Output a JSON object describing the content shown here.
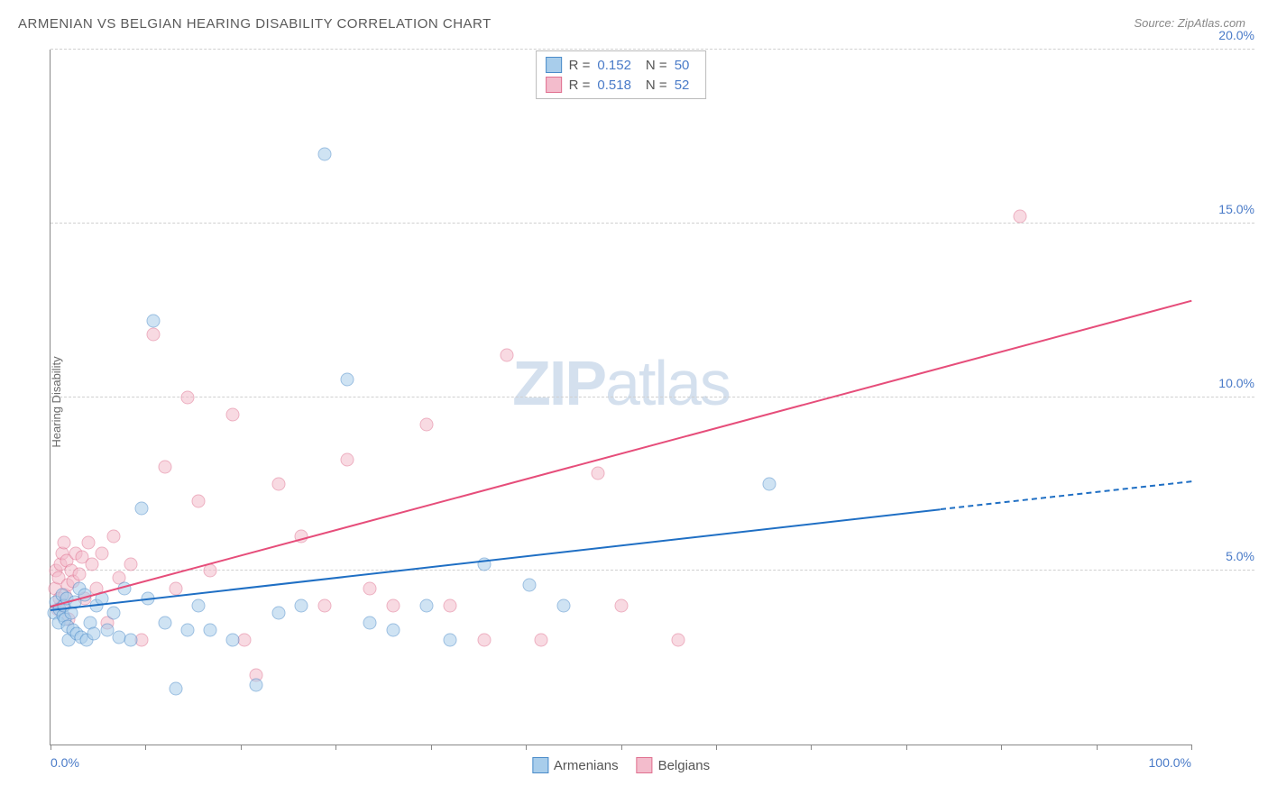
{
  "title": "ARMENIAN VS BELGIAN HEARING DISABILITY CORRELATION CHART",
  "source": "Source: ZipAtlas.com",
  "y_axis_label": "Hearing Disability",
  "watermark": {
    "zip": "ZIP",
    "atlas": "atlas"
  },
  "chart": {
    "type": "scatter",
    "xlim": [
      0,
      100
    ],
    "ylim": [
      0,
      20
    ],
    "x_ticks": [
      0,
      8.33,
      16.67,
      25,
      33.33,
      41.67,
      50,
      58.33,
      66.67,
      75,
      83.33,
      91.67,
      100
    ],
    "x_tick_labels": {
      "0": "0.0%",
      "100": "100.0%"
    },
    "y_ticks": [
      5,
      10,
      15,
      20
    ],
    "y_tick_labels": {
      "5": "5.0%",
      "10": "10.0%",
      "15": "15.0%",
      "20": "20.0%"
    },
    "grid_color": "#d0d0d0",
    "background_color": "#ffffff",
    "axis_color": "#888888",
    "tick_label_color": "#4a7bc8",
    "marker_size": 15,
    "marker_opacity": 0.55
  },
  "series": {
    "armenians": {
      "label": "Armenians",
      "fill_color": "#a8cdeb",
      "stroke_color": "#4a8bc9",
      "trend_color": "#1f6fc4",
      "r_value": "0.152",
      "n_value": "50",
      "trend": {
        "x1": 0,
        "y1": 3.9,
        "x2_solid": 78,
        "y2_solid": 6.8,
        "x2_dash": 100,
        "y2_dash": 7.6
      },
      "points": [
        [
          0.3,
          3.8
        ],
        [
          0.5,
          4.1
        ],
        [
          0.7,
          3.5
        ],
        [
          0.8,
          3.9
        ],
        [
          1.0,
          4.3
        ],
        [
          1.1,
          3.7
        ],
        [
          1.2,
          4.0
        ],
        [
          1.3,
          3.6
        ],
        [
          1.4,
          4.2
        ],
        [
          1.5,
          3.4
        ],
        [
          1.6,
          3.0
        ],
        [
          1.8,
          3.8
        ],
        [
          2.0,
          3.3
        ],
        [
          2.1,
          4.1
        ],
        [
          2.3,
          3.2
        ],
        [
          2.5,
          4.5
        ],
        [
          2.7,
          3.1
        ],
        [
          3.0,
          4.3
        ],
        [
          3.2,
          3.0
        ],
        [
          3.5,
          3.5
        ],
        [
          3.8,
          3.2
        ],
        [
          4.0,
          4.0
        ],
        [
          4.5,
          4.2
        ],
        [
          5.0,
          3.3
        ],
        [
          5.5,
          3.8
        ],
        [
          6.0,
          3.1
        ],
        [
          6.5,
          4.5
        ],
        [
          7.0,
          3.0
        ],
        [
          8.0,
          6.8
        ],
        [
          8.5,
          4.2
        ],
        [
          9.0,
          12.2
        ],
        [
          10.0,
          3.5
        ],
        [
          11.0,
          1.6
        ],
        [
          12.0,
          3.3
        ],
        [
          13.0,
          4.0
        ],
        [
          14.0,
          3.3
        ],
        [
          16.0,
          3.0
        ],
        [
          18.0,
          1.7
        ],
        [
          20.0,
          3.8
        ],
        [
          22.0,
          4.0
        ],
        [
          24.0,
          17.0
        ],
        [
          26.0,
          10.5
        ],
        [
          28.0,
          3.5
        ],
        [
          30.0,
          3.3
        ],
        [
          33.0,
          4.0
        ],
        [
          35.0,
          3.0
        ],
        [
          38.0,
          5.2
        ],
        [
          42.0,
          4.6
        ],
        [
          45.0,
          4.0
        ],
        [
          63.0,
          7.5
        ]
      ]
    },
    "belgians": {
      "label": "Belgians",
      "fill_color": "#f3bccc",
      "stroke_color": "#e0708f",
      "trend_color": "#e64d7a",
      "r_value": "0.518",
      "n_value": "52",
      "trend": {
        "x1": 0,
        "y1": 4.0,
        "x2_solid": 100,
        "y2_solid": 12.8
      },
      "points": [
        [
          0.4,
          4.5
        ],
        [
          0.5,
          5.0
        ],
        [
          0.6,
          3.9
        ],
        [
          0.7,
          4.8
        ],
        [
          0.8,
          4.2
        ],
        [
          0.9,
          5.2
        ],
        [
          1.0,
          5.5
        ],
        [
          1.1,
          4.0
        ],
        [
          1.2,
          5.8
        ],
        [
          1.3,
          4.3
        ],
        [
          1.4,
          5.3
        ],
        [
          1.5,
          4.6
        ],
        [
          1.6,
          3.6
        ],
        [
          1.8,
          5.0
        ],
        [
          2.0,
          4.7
        ],
        [
          2.2,
          5.5
        ],
        [
          2.5,
          4.9
        ],
        [
          2.8,
          5.4
        ],
        [
          3.0,
          4.2
        ],
        [
          3.3,
          5.8
        ],
        [
          3.6,
          5.2
        ],
        [
          4.0,
          4.5
        ],
        [
          4.5,
          5.5
        ],
        [
          5.0,
          3.5
        ],
        [
          5.5,
          6.0
        ],
        [
          6.0,
          4.8
        ],
        [
          7.0,
          5.2
        ],
        [
          8.0,
          3.0
        ],
        [
          9.0,
          11.8
        ],
        [
          10.0,
          8.0
        ],
        [
          11.0,
          4.5
        ],
        [
          12.0,
          10.0
        ],
        [
          13.0,
          7.0
        ],
        [
          14.0,
          5.0
        ],
        [
          16.0,
          9.5
        ],
        [
          17.0,
          3.0
        ],
        [
          18.0,
          2.0
        ],
        [
          20.0,
          7.5
        ],
        [
          22.0,
          6.0
        ],
        [
          24.0,
          4.0
        ],
        [
          26.0,
          8.2
        ],
        [
          28.0,
          4.5
        ],
        [
          30.0,
          4.0
        ],
        [
          33.0,
          9.2
        ],
        [
          35.0,
          4.0
        ],
        [
          38.0,
          3.0
        ],
        [
          40.0,
          11.2
        ],
        [
          43.0,
          3.0
        ],
        [
          48.0,
          7.8
        ],
        [
          50.0,
          4.0
        ],
        [
          55.0,
          3.0
        ],
        [
          85.0,
          15.2
        ]
      ]
    }
  },
  "stats_labels": {
    "r": "R =",
    "n": "N ="
  }
}
